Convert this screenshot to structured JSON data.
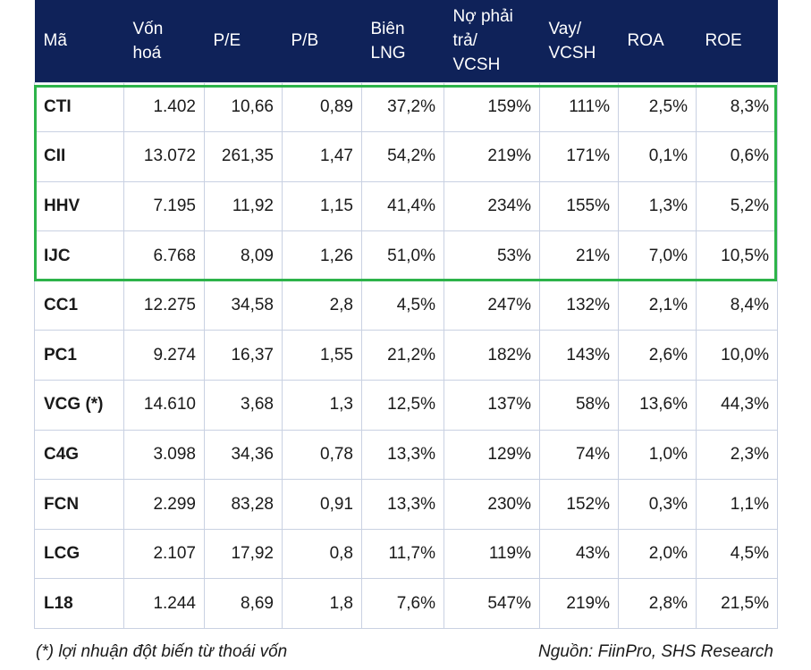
{
  "table": {
    "headers": [
      "Mã",
      "Vốn\nhoá",
      "P/E",
      "P/B",
      "Biên\nLNG",
      "Nợ phải\ntrả/\nVCSH",
      "Vay/\nVCSH",
      "ROA",
      "ROE"
    ],
    "rows": [
      [
        "CTI",
        "1.402",
        "10,66",
        "0,89",
        "37,2%",
        "159%",
        "111%",
        "2,5%",
        "8,3%"
      ],
      [
        "CII",
        "13.072",
        "261,35",
        "1,47",
        "54,2%",
        "219%",
        "171%",
        "0,1%",
        "0,6%"
      ],
      [
        "HHV",
        "7.195",
        "11,92",
        "1,15",
        "41,4%",
        "234%",
        "155%",
        "1,3%",
        "5,2%"
      ],
      [
        "IJC",
        "6.768",
        "8,09",
        "1,26",
        "51,0%",
        "53%",
        "21%",
        "7,0%",
        "10,5%"
      ],
      [
        "CC1",
        "12.275",
        "34,58",
        "2,8",
        "4,5%",
        "247%",
        "132%",
        "2,1%",
        "8,4%"
      ],
      [
        "PC1",
        "9.274",
        "16,37",
        "1,55",
        "21,2%",
        "182%",
        "143%",
        "2,6%",
        "10,0%"
      ],
      [
        "VCG (*)",
        "14.610",
        "3,68",
        "1,3",
        "12,5%",
        "137%",
        "58%",
        "13,6%",
        "44,3%"
      ],
      [
        "C4G",
        "3.098",
        "34,36",
        "0,78",
        "13,3%",
        "129%",
        "74%",
        "1,0%",
        "2,3%"
      ],
      [
        "FCN",
        "2.299",
        "83,28",
        "0,91",
        "13,3%",
        "230%",
        "152%",
        "0,3%",
        "1,1%"
      ],
      [
        "LCG",
        "2.107",
        "17,92",
        "0,8",
        "11,7%",
        "119%",
        "43%",
        "2,0%",
        "4,5%"
      ],
      [
        "L18",
        "1.244",
        "8,69",
        "1,8",
        "7,6%",
        "547%",
        "219%",
        "2,8%",
        "21,5%"
      ]
    ]
  },
  "footnote": "(*) lợi nhuận đột biến từ thoái vốn",
  "source": "Nguồn: FiinPro, SHS Research",
  "colors": {
    "header_bg": "#0f2259",
    "highlight_border": "#2db34a",
    "grid": "#c9d1e2"
  }
}
